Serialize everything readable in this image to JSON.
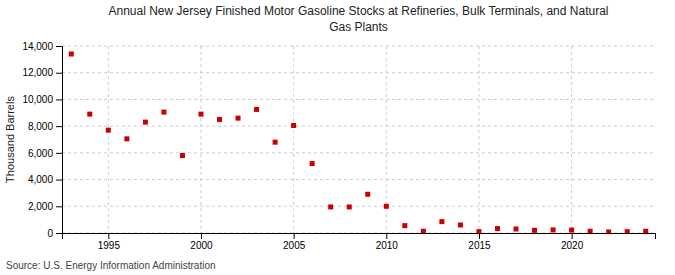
{
  "chart_data": {
    "type": "scatter",
    "title": "Annual New Jersey Finished Motor Gasoline Stocks at Refineries, Bulk Terminals, and Natural\nGas Plants",
    "ylabel": "Thousand Barrels",
    "source": "Source: U.S. Energy Information Administration",
    "color": "#cc0000",
    "marker": "square",
    "grid": true,
    "x": [
      1993,
      1994,
      1995,
      1996,
      1997,
      1998,
      1999,
      2000,
      2001,
      2002,
      2003,
      2004,
      2005,
      2006,
      2007,
      2008,
      2009,
      2010,
      2011,
      2012,
      2013,
      2014,
      2015,
      2016,
      2017,
      2018,
      2019,
      2020,
      2021,
      2022,
      2023,
      2024
    ],
    "values": [
      13400,
      8900,
      7700,
      7050,
      8300,
      9050,
      5800,
      8900,
      8500,
      8600,
      9250,
      6800,
      8050,
      5200,
      1950,
      1950,
      2900,
      2000,
      550,
      130,
      850,
      600,
      100,
      330,
      300,
      200,
      230,
      220,
      130,
      80,
      100,
      130
    ],
    "xlim": [
      1992.5,
      2024.5
    ],
    "ylim": [
      0,
      14000
    ],
    "xticks": [
      1995,
      2000,
      2005,
      2010,
      2015,
      2020
    ],
    "yticks": [
      0,
      {
        "value": 2000,
        "label": "2,000"
      },
      {
        "value": 4000,
        "label": "4,000"
      },
      {
        "value": 6000,
        "label": "6,000"
      },
      {
        "value": 8000,
        "label": "8,000"
      },
      {
        "value": 10000,
        "label": "10,000"
      },
      {
        "value": 12000,
        "label": "12,000"
      },
      {
        "value": 14000,
        "label": "14,000"
      }
    ]
  }
}
